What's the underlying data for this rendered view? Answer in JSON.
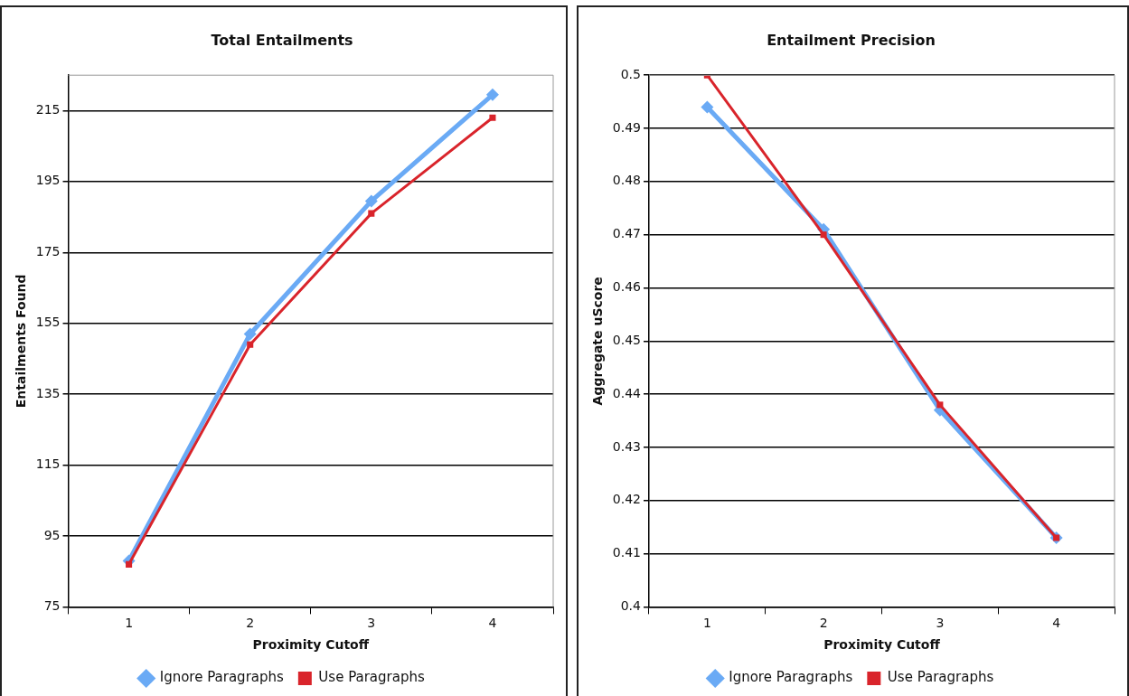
{
  "chart_data": [
    {
      "type": "line",
      "title": "Total Entailments",
      "xlabel": "Proximity Cutoff",
      "ylabel": "Entailments Found",
      "categories": [
        "1",
        "2",
        "3",
        "4"
      ],
      "series": [
        {
          "name": "Ignore Paragraphs",
          "color": "#6aaaf5",
          "values": [
            88,
            152,
            189.5,
            219.5
          ],
          "marker": "diamond"
        },
        {
          "name": "Use Paragraphs",
          "color": "#d9242b",
          "values": [
            87,
            149,
            186,
            213
          ],
          "marker": "square"
        }
      ],
      "ylim": [
        75,
        225
      ],
      "yticks": [
        75,
        95,
        115,
        135,
        155,
        175,
        195,
        215
      ],
      "grid": "y",
      "legend": "bottom"
    },
    {
      "type": "line",
      "title": "Entailment Precision",
      "xlabel": "Proximity Cutoff",
      "ylabel": "Aggregate uScore",
      "categories": [
        "1",
        "2",
        "3",
        "4"
      ],
      "series": [
        {
          "name": "Ignore Paragraphs",
          "color": "#6aaaf5",
          "values": [
            0.494,
            0.471,
            0.437,
            0.413
          ],
          "marker": "diamond"
        },
        {
          "name": "Use Paragraphs",
          "color": "#d9242b",
          "values": [
            0.5,
            0.47,
            0.438,
            0.413
          ],
          "marker": "square"
        }
      ],
      "ylim": [
        0.4,
        0.5
      ],
      "yticks": [
        0.4,
        0.41,
        0.42,
        0.43,
        0.44,
        0.45,
        0.46,
        0.47,
        0.48,
        0.49,
        0.5
      ],
      "grid": "y",
      "legend": "bottom"
    }
  ]
}
